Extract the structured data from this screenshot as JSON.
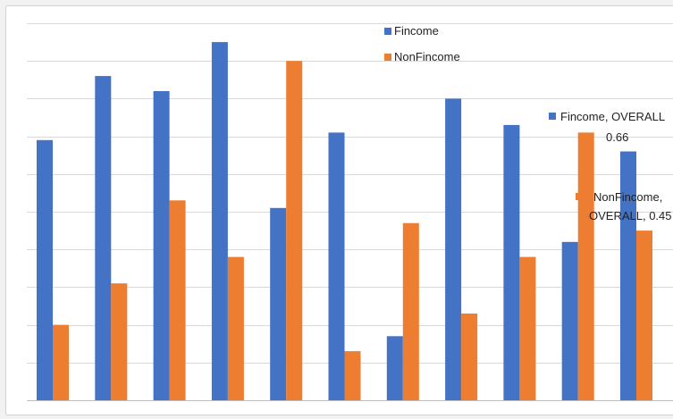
{
  "chart_data": {
    "type": "bar",
    "title": "",
    "xlabel": "",
    "ylabel": "",
    "ylim": [
      0,
      1.0
    ],
    "grid": true,
    "legend_position": "top",
    "categories": [
      "",
      "",
      "",
      "",
      "",
      "",
      "",
      "",
      "",
      "",
      ""
    ],
    "series": [
      {
        "name": "Fincome",
        "color": "#4472c4",
        "values": [
          0.69,
          0.86,
          0.82,
          0.95,
          0.51,
          0.71,
          0.17,
          0.8,
          0.73,
          0.42,
          0.66
        ]
      },
      {
        "name": "NonFincome",
        "color": "#ed7d31",
        "values": [
          0.2,
          0.31,
          0.53,
          0.38,
          0.9,
          0.13,
          0.47,
          0.23,
          0.38,
          0.71,
          0.45
        ]
      }
    ],
    "legend": [
      {
        "label": "Fincome",
        "color": "#4472c4"
      },
      {
        "label": "NonFincome",
        "color": "#ed7d31"
      }
    ],
    "annotations": [
      {
        "series": "Fincome",
        "lines": [
          "Fincome, OVERALL",
          "0.66"
        ]
      },
      {
        "series": "NonFincome",
        "lines": [
          "NonFincome,",
          "OVERALL, 0.45"
        ]
      }
    ]
  }
}
